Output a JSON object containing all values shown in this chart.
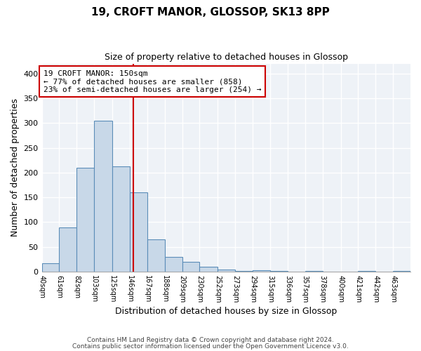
{
  "title": "19, CROFT MANOR, GLOSSOP, SK13 8PP",
  "subtitle": "Size of property relative to detached houses in Glossop",
  "xlabel": "Distribution of detached houses by size in Glossop",
  "ylabel": "Number of detached properties",
  "bin_labels": [
    "40sqm",
    "61sqm",
    "82sqm",
    "103sqm",
    "125sqm",
    "146sqm",
    "167sqm",
    "188sqm",
    "209sqm",
    "230sqm",
    "252sqm",
    "273sqm",
    "294sqm",
    "315sqm",
    "336sqm",
    "357sqm",
    "378sqm",
    "400sqm",
    "421sqm",
    "442sqm",
    "463sqm"
  ],
  "bar_edges": [
    40,
    61,
    82,
    103,
    125,
    146,
    167,
    188,
    209,
    230,
    252,
    273,
    294,
    315,
    336,
    357,
    378,
    400,
    421,
    442,
    463,
    484
  ],
  "all_bar_values": [
    17,
    90,
    210,
    305,
    213,
    160,
    65,
    30,
    20,
    10,
    5,
    1,
    3,
    1,
    0,
    2,
    0,
    0,
    1,
    0,
    2
  ],
  "bar_color": "#c8d8e8",
  "bar_edge_color": "#5b8db8",
  "vline_x": 150,
  "vline_color": "#cc0000",
  "annotation_line1": "19 CROFT MANOR: 150sqm",
  "annotation_line2": "← 77% of detached houses are smaller (858)",
  "annotation_line3": "23% of semi-detached houses are larger (254) →",
  "ylim": [
    0,
    420
  ],
  "background_color": "#eef2f7",
  "footer_line1": "Contains HM Land Registry data © Crown copyright and database right 2024.",
  "footer_line2": "Contains public sector information licensed under the Open Government Licence v3.0."
}
